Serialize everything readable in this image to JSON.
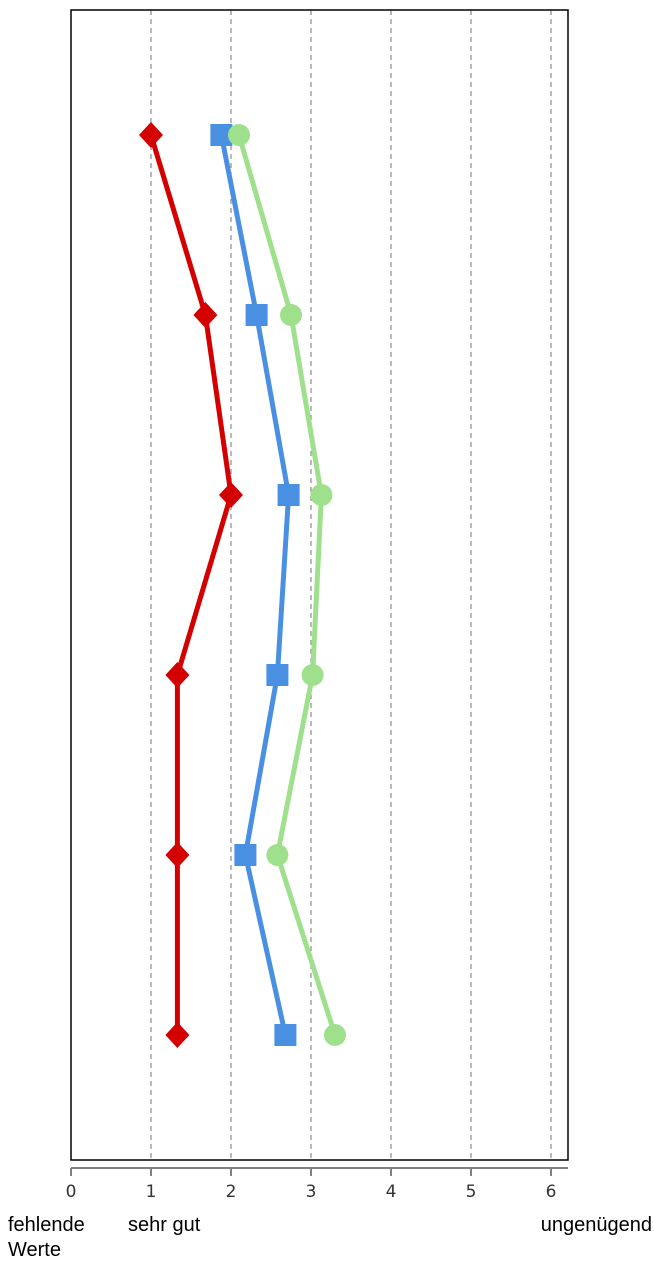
{
  "chart_data": {
    "type": "line",
    "orientation": "horizontal",
    "xlim": [
      0,
      6.2
    ],
    "x_ticks": [
      0,
      1,
      2,
      3,
      4,
      5,
      6
    ],
    "grid": "vertical-dashed",
    "legend": "none",
    "category_labels": [
      {
        "x": 0,
        "lines": [
          "fehlende",
          "Werte"
        ]
      },
      {
        "x": 1,
        "lines": [
          "sehr gut"
        ]
      },
      {
        "x": 6,
        "lines": [
          "ungenügend"
        ]
      }
    ],
    "rows": [
      1,
      2,
      3,
      4,
      5,
      6
    ],
    "series": [
      {
        "marker": "diamond",
        "color": "#d40000",
        "values": [
          1.0,
          1.68,
          2.0,
          1.33,
          1.33,
          1.33
        ]
      },
      {
        "marker": "square",
        "color": "#4a90e2",
        "values": [
          1.88,
          2.32,
          2.72,
          2.58,
          2.18,
          2.68
        ]
      },
      {
        "marker": "circle",
        "color": "#9fe08c",
        "values": [
          2.1,
          2.75,
          3.13,
          3.02,
          2.58,
          3.3
        ]
      }
    ]
  }
}
